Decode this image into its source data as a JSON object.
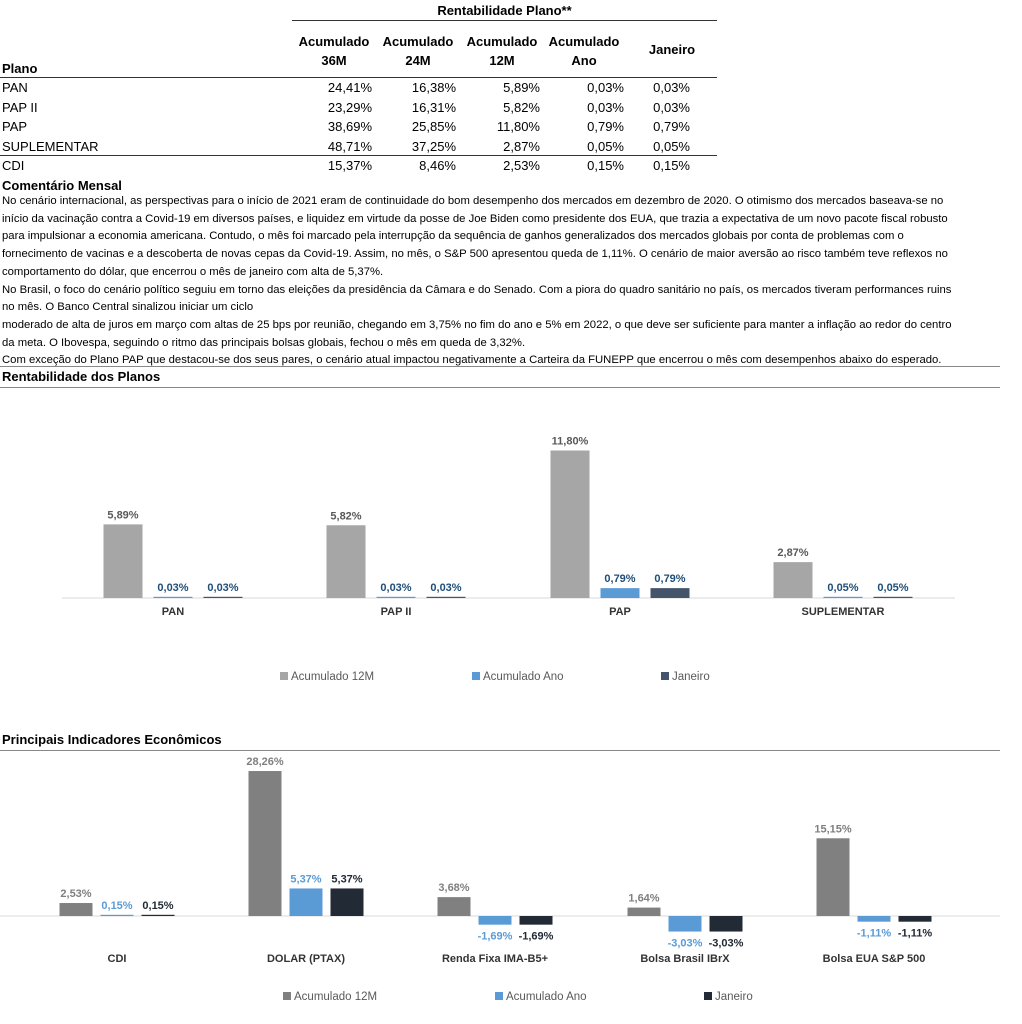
{
  "table": {
    "supertitle": "Rentabilidade Plano**",
    "plan_header": "Plano",
    "columns": [
      {
        "line1": "Acumulado",
        "line2": "36M"
      },
      {
        "line1": "Acumulado",
        "line2": "24M"
      },
      {
        "line1": "Acumulado",
        "line2": "12M"
      },
      {
        "line1": "Acumulado",
        "line2": "Ano"
      },
      {
        "line1": "Janeiro",
        "line2": ""
      }
    ],
    "rows": [
      {
        "name": "PAN",
        "values": [
          "24,41%",
          "16,38%",
          "5,89%",
          "0,03%",
          "0,03%"
        ]
      },
      {
        "name": "PAP II",
        "values": [
          "23,29%",
          "16,31%",
          "5,82%",
          "0,03%",
          "0,03%"
        ]
      },
      {
        "name": "PAP",
        "values": [
          "38,69%",
          "25,85%",
          "11,80%",
          "0,79%",
          "0,79%"
        ]
      },
      {
        "name": "SUPLEMENTAR",
        "values": [
          "48,71%",
          "37,25%",
          "2,87%",
          "0,05%",
          "0,05%"
        ]
      },
      {
        "name": "CDI",
        "values": [
          "15,37%",
          "8,46%",
          "2,53%",
          "0,15%",
          "0,15%"
        ]
      }
    ]
  },
  "comment": {
    "title": "Comentário Mensal",
    "lines": [
      "No cenário internacional, as perspectivas para o início de 2021 eram de continuidade do bom desempenho dos mercados em dezembro de 2020. O otimismo dos mercados baseava-se no",
      "início da vacinação contra a Covid-19 em diversos países, e liquidez em virtude da posse de Joe Biden como presidente dos EUA, que trazia a expectativa de um novo pacote fiscal robusto",
      "para impulsionar a economia americana. Contudo, o mês foi marcado pela interrupção da sequência de ganhos generalizados dos mercados globais por conta de problemas com o",
      "fornecimento de vacinas e a descoberta de novas cepas da Covid-19. Assim, no mês, o S&P 500 apresentou queda de 1,11%. O cenário de maior aversão ao risco também teve reflexos no",
      "comportamento do dólar, que encerrou o mês de janeiro com alta de 5,37%.",
      "No Brasil, o foco do cenário político seguiu em torno das eleições da presidência da Câmara e do Senado. Com a piora do quadro sanitário no país, os mercados tiveram performances ruins",
      "no mês. O Banco Central sinalizou iniciar um ciclo",
      "moderado de alta de juros em março com altas de 25 bps por reunião, chegando em 3,75% no fim do ano e 5% em 2022, o que deve ser suficiente para manter a inflação ao redor do centro",
      "da meta. O Ibovespa, seguindo o ritmo das principais bolsas globais, fechou o mês em queda de 3,32%.",
      "Com exceção do Plano PAP que destacou-se dos seus pares, o cenário atual impactou negativamente a Carteira da FUNEPP que encerrou o mês com desempenhos abaixo do esperado."
    ]
  },
  "chart_data": [
    {
      "type": "bar",
      "title": "Rentabilidade dos Planos",
      "categories": [
        "PAN",
        "PAP II",
        "PAP",
        "SUPLEMENTAR"
      ],
      "series": [
        {
          "name": "Acumulado 12M",
          "values": [
            5.89,
            5.82,
            11.8,
            2.87
          ],
          "labels": [
            "5,89%",
            "5,82%",
            "11,80%",
            "2,87%"
          ],
          "color": "#A6A6A6",
          "label_color": "#595959"
        },
        {
          "name": "Acumulado Ano",
          "values": [
            0.03,
            0.03,
            0.79,
            0.05
          ],
          "labels": [
            "0,03%",
            "0,03%",
            "0,79%",
            "0,05%"
          ],
          "color": "#5B9BD5",
          "label_color": "#1F4E79"
        },
        {
          "name": "Janeiro",
          "values": [
            0.03,
            0.03,
            0.79,
            0.05
          ],
          "labels": [
            "0,03%",
            "0,03%",
            "0,79%",
            "0,05%"
          ],
          "color": "#44546A",
          "label_color": "#1F4E79"
        }
      ],
      "legend": "bottom"
    },
    {
      "type": "bar",
      "title": "Principais Indicadores Econômicos",
      "categories": [
        "CDI",
        "DOLAR (PTAX)",
        "Renda Fixa IMA-B5+",
        "Bolsa Brasil IBrX",
        "Bolsa EUA S&P 500"
      ],
      "series": [
        {
          "name": "Acumulado 12M",
          "values": [
            2.53,
            28.26,
            3.68,
            1.64,
            15.15
          ],
          "labels": [
            "2,53%",
            "28,26%",
            "3,68%",
            "1,64%",
            "15,15%"
          ],
          "color": "#808080",
          "label_color": "#7F7F7F"
        },
        {
          "name": "Acumulado Ano",
          "values": [
            0.15,
            5.37,
            -1.69,
            -3.03,
            -1.11
          ],
          "labels": [
            "0,15%",
            "5,37%",
            "-1,69%",
            "-3,03%",
            "-1,11%"
          ],
          "color": "#5B9BD5",
          "label_color": "#5B9BD5"
        },
        {
          "name": "Janeiro",
          "values": [
            0.15,
            5.37,
            -1.69,
            -3.03,
            -1.11
          ],
          "labels": [
            "0,15%",
            "5,37%",
            "-1,69%",
            "-3,03%",
            "-1,11%"
          ],
          "color": "#222A35",
          "label_color": "#222A35"
        }
      ],
      "legend": "bottom"
    }
  ]
}
